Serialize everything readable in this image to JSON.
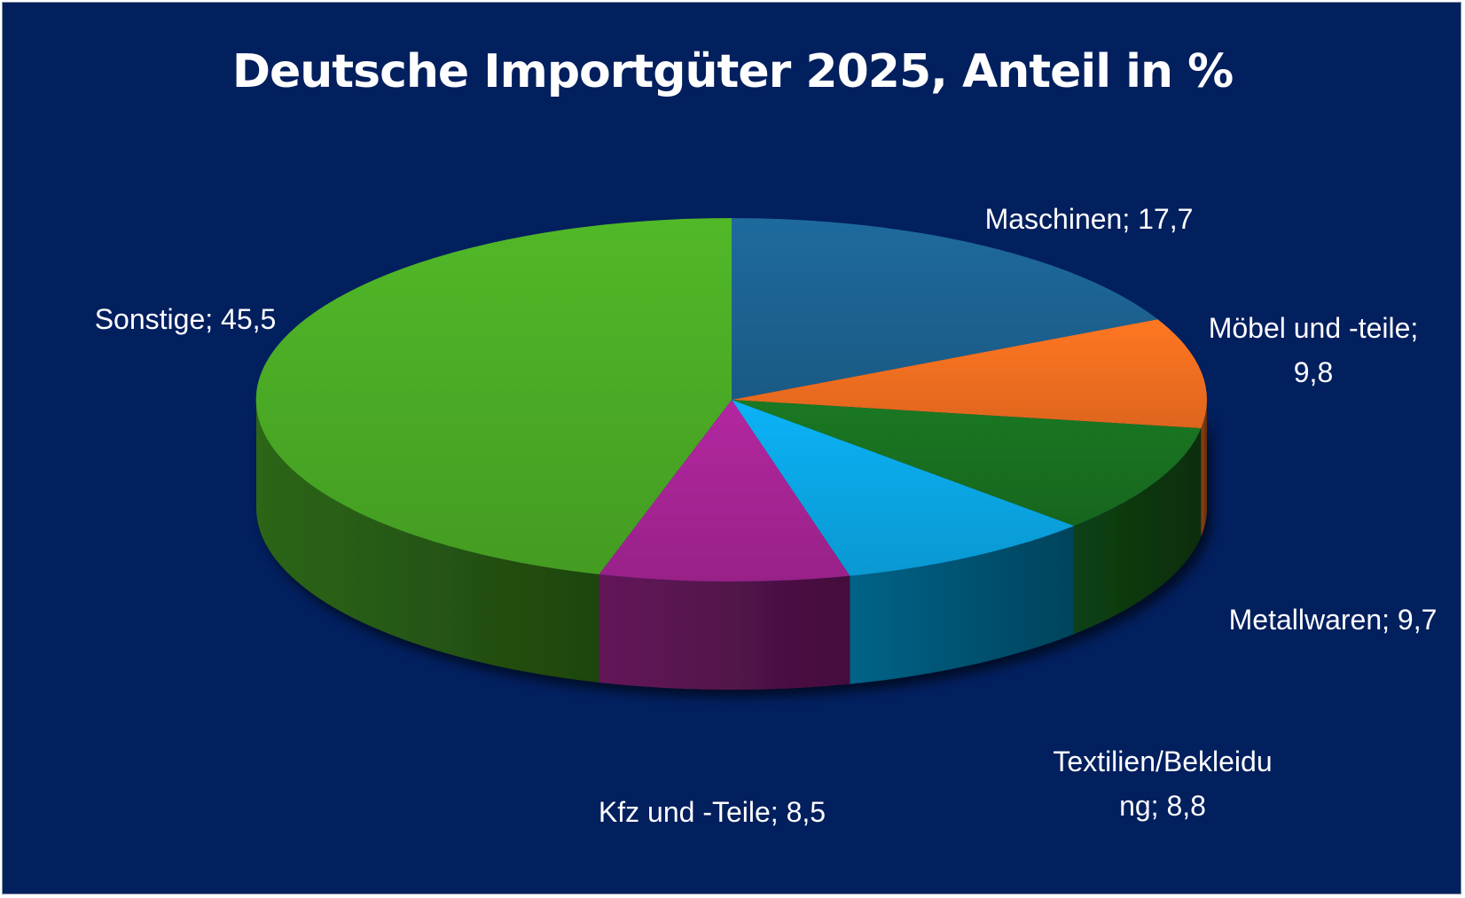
{
  "chart_data": {
    "type": "pie",
    "title": "Deutsche Importgüter 2025, Anteil in %",
    "style": "3d",
    "slices": [
      {
        "label": "Maschinen",
        "value": 17.7,
        "value_text": "17,7",
        "label_lines": [
          "Maschinen; 17,7"
        ],
        "color": "#1b5f8c"
      },
      {
        "label": "Möbel und -teile",
        "value": 9.8,
        "value_text": "9,8",
        "label_lines": [
          "Möbel und -teile;",
          "9,8"
        ],
        "color": "#ea6a1e"
      },
      {
        "label": "Metallwaren",
        "value": 9.7,
        "value_text": "9,7",
        "label_lines": [
          "Metallwaren; 9,7"
        ],
        "color": "#176b1e"
      },
      {
        "label": "Textilien/Bekleidung",
        "value": 8.8,
        "value_text": "8,8",
        "label_lines": [
          "Textilien/Bekleidu",
          "ng; 8,8"
        ],
        "color": "#0aa0dc"
      },
      {
        "label": "Kfz und -Teile",
        "value": 8.5,
        "value_text": "8,5",
        "label_lines": [
          "Kfz und -Teile; 8,5"
        ],
        "color": "#a0238f"
      },
      {
        "label": "Sonstige",
        "value": 45.5,
        "value_text": "45,5",
        "label_lines": [
          "Sonstige; 45,5"
        ],
        "color": "#48a424"
      }
    ]
  }
}
